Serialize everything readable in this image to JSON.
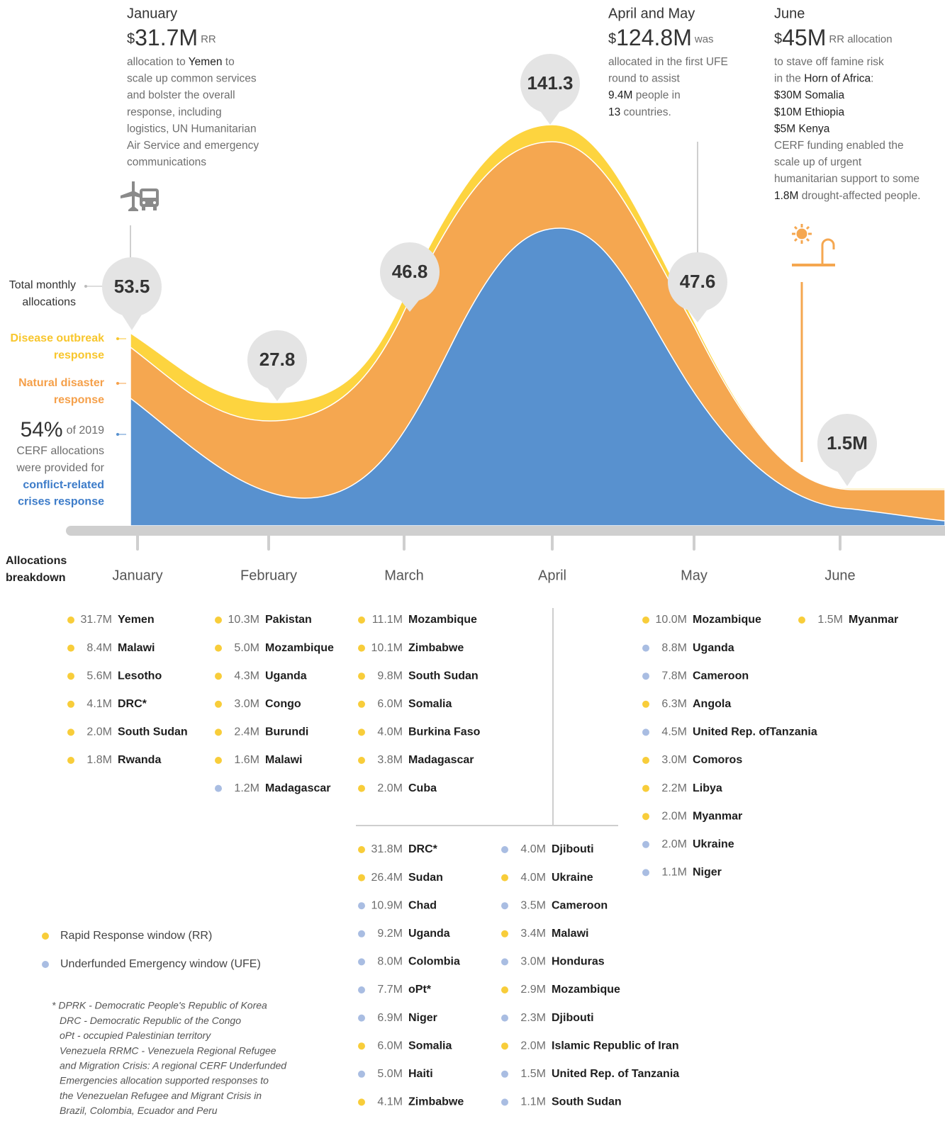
{
  "callouts": [
    {
      "title": "January",
      "currency": "$",
      "amount": "31.7M",
      "note": "RR",
      "lines": [
        [
          "allocation to ",
          {
            "strong": "Yemen"
          },
          " to"
        ],
        [
          "scale up common services"
        ],
        [
          "and bolster the overall"
        ],
        [
          "response, including"
        ],
        [
          "logistics, UN Humanitarian"
        ],
        [
          "Air Service and emergency"
        ],
        [
          "communications"
        ]
      ]
    },
    {
      "title": "April and May",
      "currency": "$",
      "amount": "124.8M",
      "note": "was",
      "lines": [
        [
          "allocated in the first UFE"
        ],
        [
          "round to assist"
        ],
        [
          {
            "strong": "9.4M"
          },
          " people in"
        ],
        [
          {
            "strong": "13"
          },
          " countries."
        ]
      ]
    },
    {
      "title": "June",
      "currency": "$",
      "amount": "45M",
      "note": "RR allocation",
      "lines": [
        [
          "to stave off famine risk"
        ],
        [
          "in the ",
          {
            "strong": "Horn of Africa"
          },
          ":"
        ],
        [
          {
            "strong": "$30M Somalia"
          }
        ],
        [
          {
            "strong": "$10M Ethiopia"
          }
        ],
        [
          {
            "strong": "$5M Kenya"
          }
        ],
        [
          "CERF funding enabled the"
        ],
        [
          "scale up of urgent"
        ],
        [
          "humanitarian support to some"
        ],
        [
          {
            "strong": "1.8M"
          },
          " drought-affected people."
        ]
      ]
    }
  ],
  "side_labels": {
    "total": [
      "Total monthly",
      "allocations"
    ],
    "disease": [
      "Disease outbreak",
      "response"
    ],
    "natural": [
      "Natural disaster",
      "response"
    ],
    "share": "54%",
    "share_note": "of 2019",
    "share_lines": [
      "CERF allocations",
      "were provided for"
    ],
    "conflict": [
      "conflict-related",
      "crises response"
    ]
  },
  "bubbles": [
    "53.5",
    "27.8",
    "46.8",
    "141.3",
    "47.6",
    "1.5M"
  ],
  "months": [
    "January",
    "February",
    "March",
    "April",
    "May",
    "June"
  ],
  "breakdown_title": [
    "Allocations",
    "breakdown"
  ],
  "legend": [
    {
      "key": "RR",
      "label": "Rapid Response window (RR)",
      "color": "#f8cd3a"
    },
    {
      "key": "UFE",
      "label": "Underfunded Emergency window (UFE)",
      "color": "#a9bde2"
    }
  ],
  "breakdown": [
    {
      "items": [
        {
          "amount": "31.7M",
          "country": "Yemen",
          "window": "RR"
        },
        {
          "amount": "8.4M",
          "country": "Malawi",
          "window": "RR"
        },
        {
          "amount": "5.6M",
          "country": "Lesotho",
          "window": "RR"
        },
        {
          "amount": "4.1M",
          "country": "DRC*",
          "window": "RR"
        },
        {
          "amount": "2.0M",
          "country": "South Sudan",
          "window": "RR"
        },
        {
          "amount": "1.8M",
          "country": "Rwanda",
          "window": "RR"
        }
      ]
    },
    {
      "items": [
        {
          "amount": "10.3M",
          "country": "Pakistan",
          "window": "RR"
        },
        {
          "amount": "5.0M",
          "country": "Mozambique",
          "window": "RR"
        },
        {
          "amount": "4.3M",
          "country": "Uganda",
          "window": "RR"
        },
        {
          "amount": "3.0M",
          "country": "Congo",
          "window": "RR"
        },
        {
          "amount": "2.4M",
          "country": "Burundi",
          "window": "RR"
        },
        {
          "amount": "1.6M",
          "country": "Malawi",
          "window": "RR"
        },
        {
          "amount": "1.2M",
          "country": "Madagascar",
          "window": "UFE"
        }
      ]
    },
    {
      "items": [
        {
          "amount": "11.1M",
          "country": "Mozambique",
          "window": "RR"
        },
        {
          "amount": "10.1M",
          "country": "Zimbabwe",
          "window": "RR"
        },
        {
          "amount": "9.8M",
          "country": "South Sudan",
          "window": "RR"
        },
        {
          "amount": "6.0M",
          "country": "Somalia",
          "window": "RR"
        },
        {
          "amount": "4.0M",
          "country": "Burkina Faso",
          "window": "RR"
        },
        {
          "amount": "3.8M",
          "country": "Madagascar",
          "window": "RR"
        },
        {
          "amount": "2.0M",
          "country": "Cuba",
          "window": "RR"
        }
      ]
    },
    {
      "items": [
        {
          "amount": "31.8M",
          "country": "DRC*",
          "window": "RR"
        },
        {
          "amount": "26.4M",
          "country": "Sudan",
          "window": "RR"
        },
        {
          "amount": "10.9M",
          "country": "Chad",
          "window": "UFE"
        },
        {
          "amount": "9.2M",
          "country": "Uganda",
          "window": "UFE"
        },
        {
          "amount": "8.0M",
          "country": "Colombia",
          "window": "UFE"
        },
        {
          "amount": "7.7M",
          "country": "oPt*",
          "window": "UFE"
        },
        {
          "amount": "6.9M",
          "country": "Niger",
          "window": "UFE"
        },
        {
          "amount": "6.0M",
          "country": "Somalia",
          "window": "RR"
        },
        {
          "amount": "5.0M",
          "country": "Haiti",
          "window": "UFE"
        },
        {
          "amount": "4.1M",
          "country": "Zimbabwe",
          "window": "RR"
        }
      ]
    },
    {
      "items": [
        {
          "amount": "4.0M",
          "country": "Djibouti",
          "window": "UFE"
        },
        {
          "amount": "4.0M",
          "country": "Ukraine",
          "window": "RR"
        },
        {
          "amount": "3.5M",
          "country": "Cameroon",
          "window": "UFE"
        },
        {
          "amount": "3.4M",
          "country": "Malawi",
          "window": "RR"
        },
        {
          "amount": "3.0M",
          "country": "Honduras",
          "window": "UFE"
        },
        {
          "amount": "2.9M",
          "country": "Mozambique",
          "window": "RR"
        },
        {
          "amount": "2.3M",
          "country": "Djibouti",
          "window": "UFE"
        },
        {
          "amount": "2.0M",
          "country": "Islamic Republic of Iran",
          "window": "RR"
        },
        {
          "amount": "1.5M",
          "country": "United Rep. of Tanzania",
          "window": "UFE"
        },
        {
          "amount": "1.1M",
          "country": "South Sudan",
          "window": "UFE"
        }
      ]
    },
    {
      "items": [
        {
          "amount": "10.0M",
          "country": "Mozambique",
          "window": "RR"
        },
        {
          "amount": "8.8M",
          "country": "Uganda",
          "window": "UFE"
        },
        {
          "amount": "7.8M",
          "country": "Cameroon",
          "window": "UFE"
        },
        {
          "amount": "6.3M",
          "country": "Angola",
          "window": "RR"
        },
        {
          "amount": "4.5M",
          "country": "United Rep. ofTanzania",
          "window": "UFE"
        },
        {
          "amount": "3.0M",
          "country": "Comoros",
          "window": "RR"
        },
        {
          "amount": "2.2M",
          "country": "Libya",
          "window": "RR"
        },
        {
          "amount": "2.0M",
          "country": "Myanmar",
          "window": "RR"
        },
        {
          "amount": "2.0M",
          "country": "Ukraine",
          "window": "UFE"
        },
        {
          "amount": "1.1M",
          "country": "Niger",
          "window": "UFE"
        }
      ]
    },
    {
      "items": [
        {
          "amount": "1.5M",
          "country": "Myanmar",
          "window": "RR"
        }
      ]
    }
  ],
  "footnote": [
    "* DPRK - Democratic People's Republic of Korea",
    "DRC - Democratic Republic of the Congo",
    "oPt - occupied Palestinian territory",
    "Venezuela RRMC - Venezuela Regional Refugee",
    "and Migration Crisis: A regional CERF Underfunded",
    "Emergencies allocation supported responses to",
    "the Venezuelan Refugee and Migrant Crisis in",
    "Brazil, Colombia, Ecuador and Peru"
  ]
}
